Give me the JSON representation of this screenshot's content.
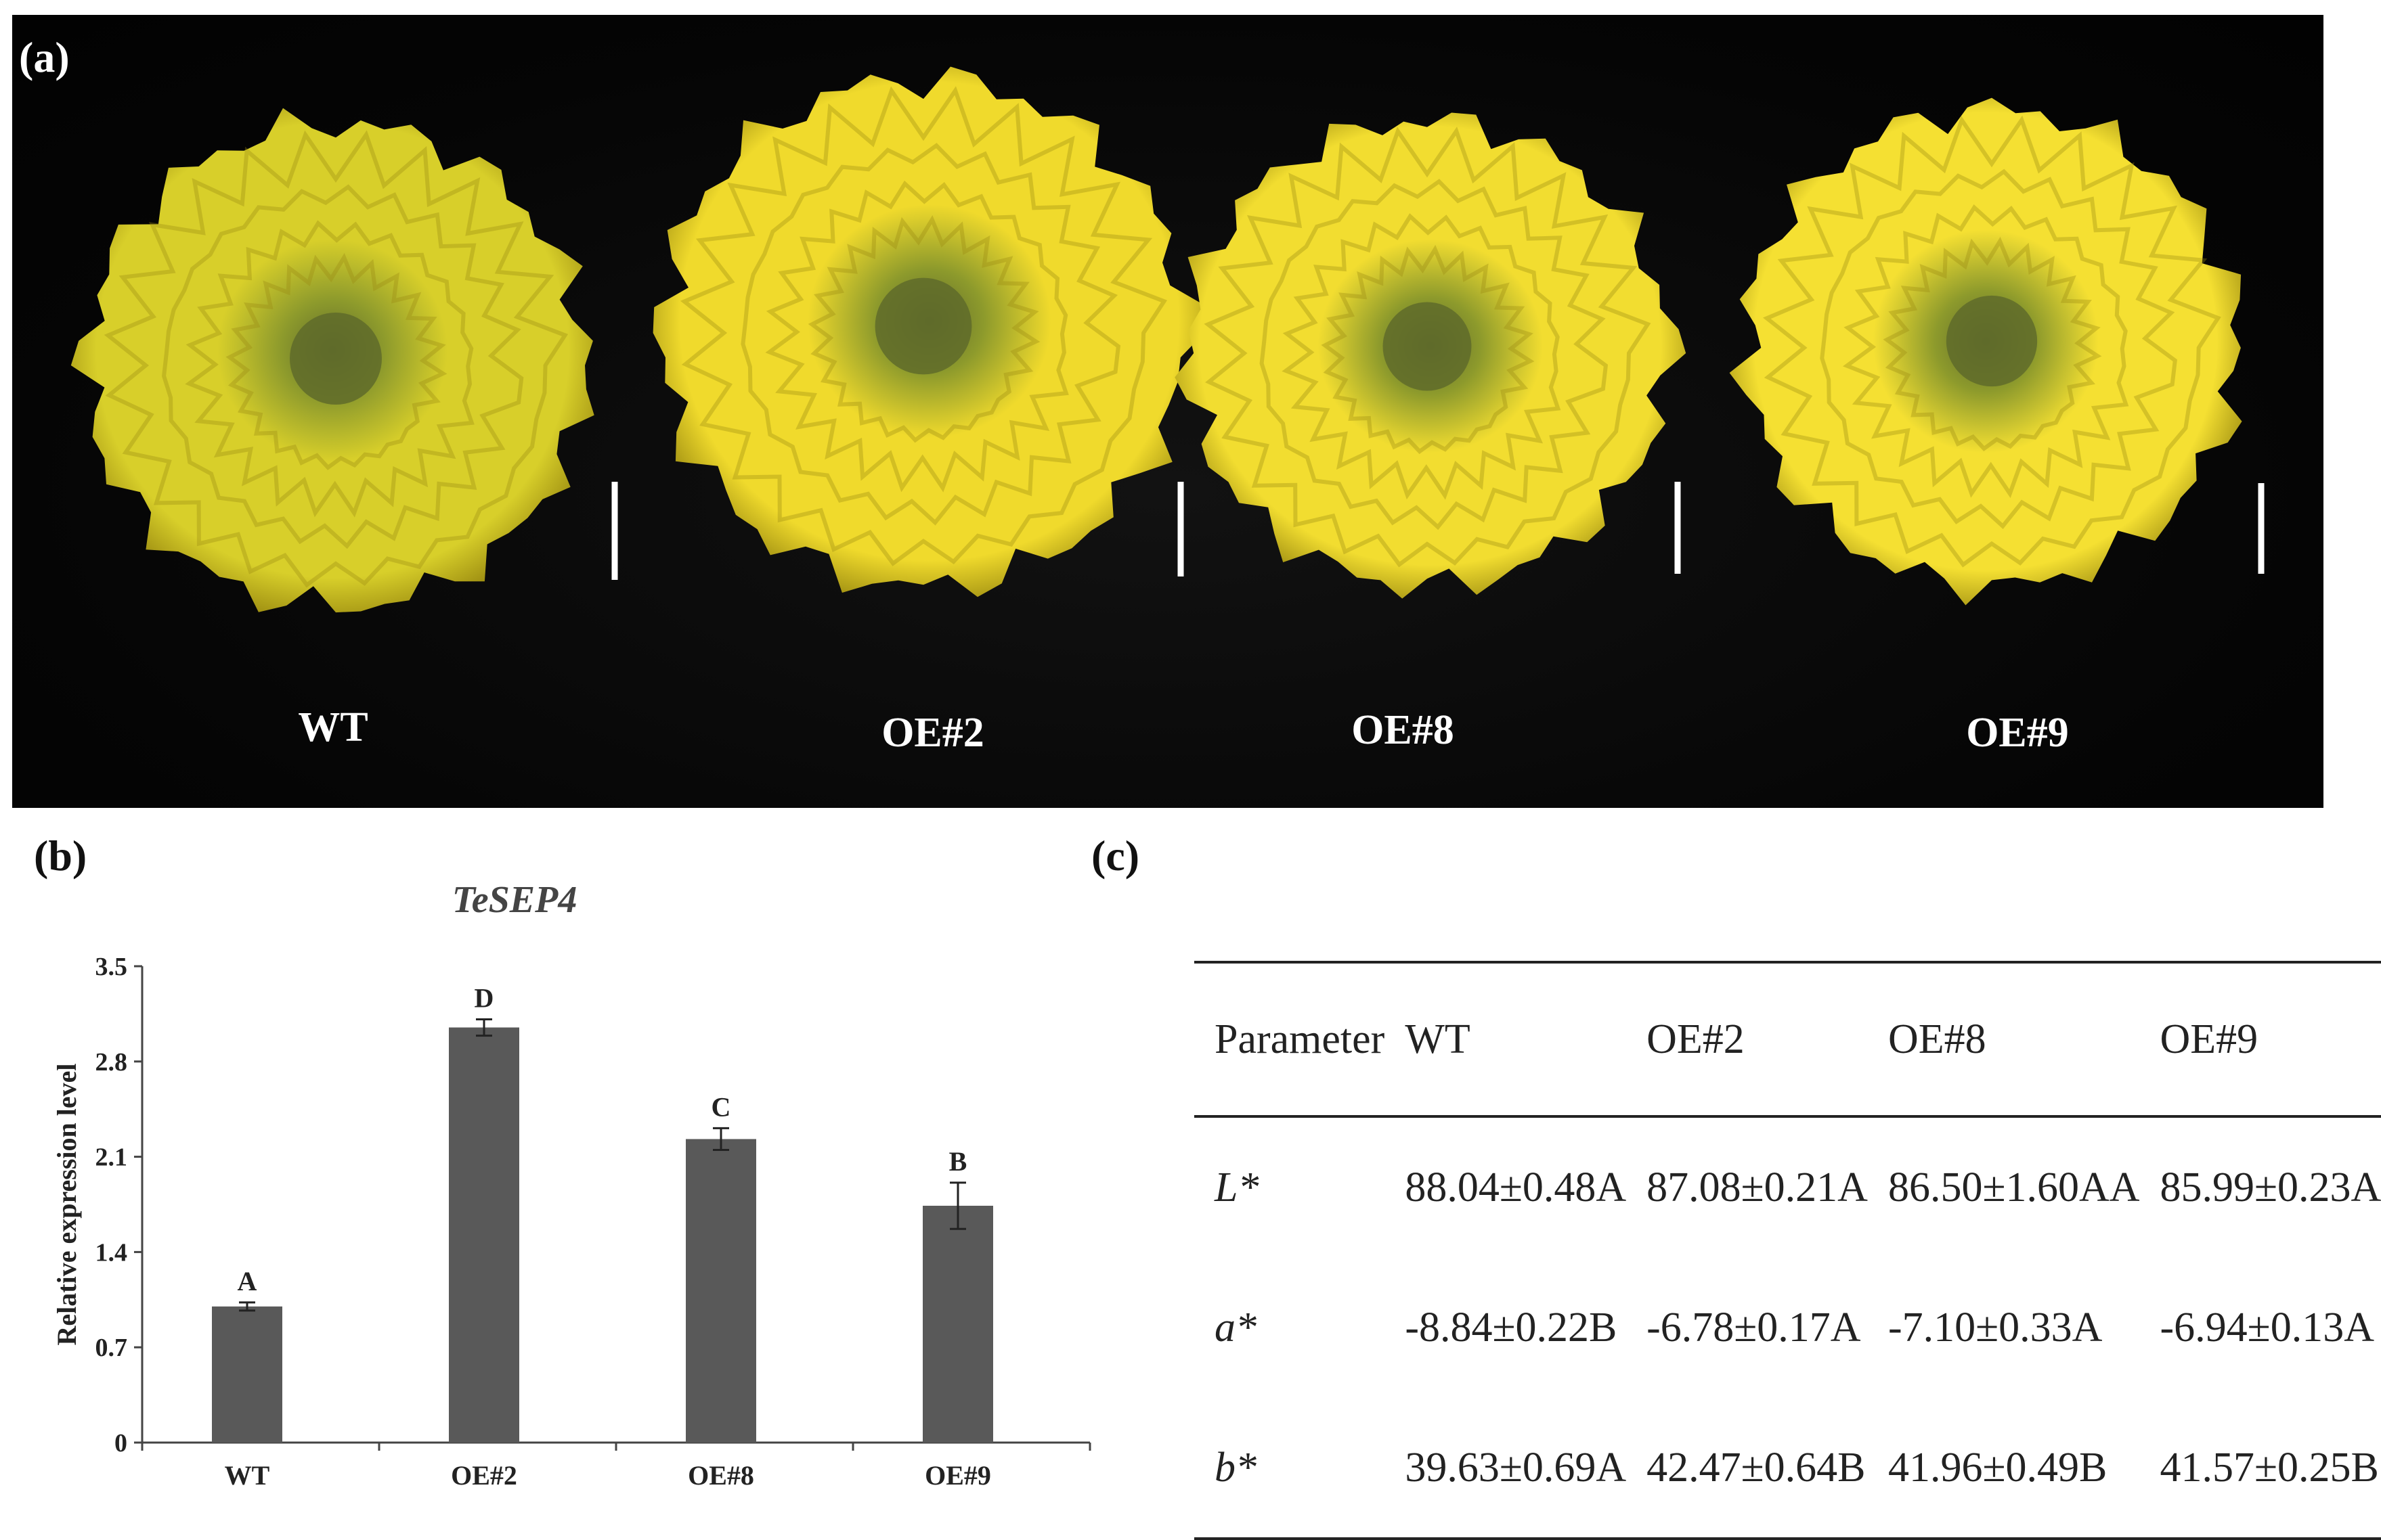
{
  "panel_a": {
    "label": "(a)",
    "flowers": [
      {
        "name": "WT"
      },
      {
        "name": "OE#2"
      },
      {
        "name": "OE#8"
      },
      {
        "name": "OE#9"
      }
    ],
    "colors": {
      "background": "#050505",
      "petal": "#e8d62a",
      "petal_shadow": "#9a8a10",
      "center": "#5f6b2a",
      "scale_bar": "#ffffff"
    }
  },
  "panel_b": {
    "label": "(b)"
  },
  "panel_c": {
    "label": "(c)",
    "headers": [
      "Parameter",
      "WT",
      "OE#2",
      "OE#8",
      "OE#9"
    ],
    "rows": [
      {
        "param": "L*",
        "values": [
          "88.04±0.48A",
          "87.08±0.21A",
          "86.50±1.60AA",
          "85.99±0.23A"
        ]
      },
      {
        "param": "a*",
        "values": [
          "-8.84±0.22B",
          "-6.78±0.17A",
          "-7.10±0.33A",
          "-6.94±0.13A"
        ]
      },
      {
        "param": "b*",
        "values": [
          "39.63±0.69A",
          "42.47±0.64B",
          "41.96±0.49B",
          "41.57±0.25B"
        ]
      }
    ]
  },
  "chart_data": {
    "type": "bar",
    "title": "TeSEP4",
    "xlabel": "",
    "ylabel": "Relative expression level",
    "categories": [
      "WT",
      "OE#2",
      "OE#8",
      "OE#9"
    ],
    "values": [
      1.0,
      3.05,
      2.23,
      1.74
    ],
    "errors": [
      0.03,
      0.06,
      0.08,
      0.17
    ],
    "significance": [
      "A",
      "D",
      "C",
      "B"
    ],
    "ylim": [
      0,
      3.5
    ],
    "yticks": [
      "0",
      "0.7",
      "1.4",
      "2.1",
      "2.8",
      "3.5"
    ],
    "bar_color": "#595959",
    "grid": false,
    "legend": "none"
  }
}
